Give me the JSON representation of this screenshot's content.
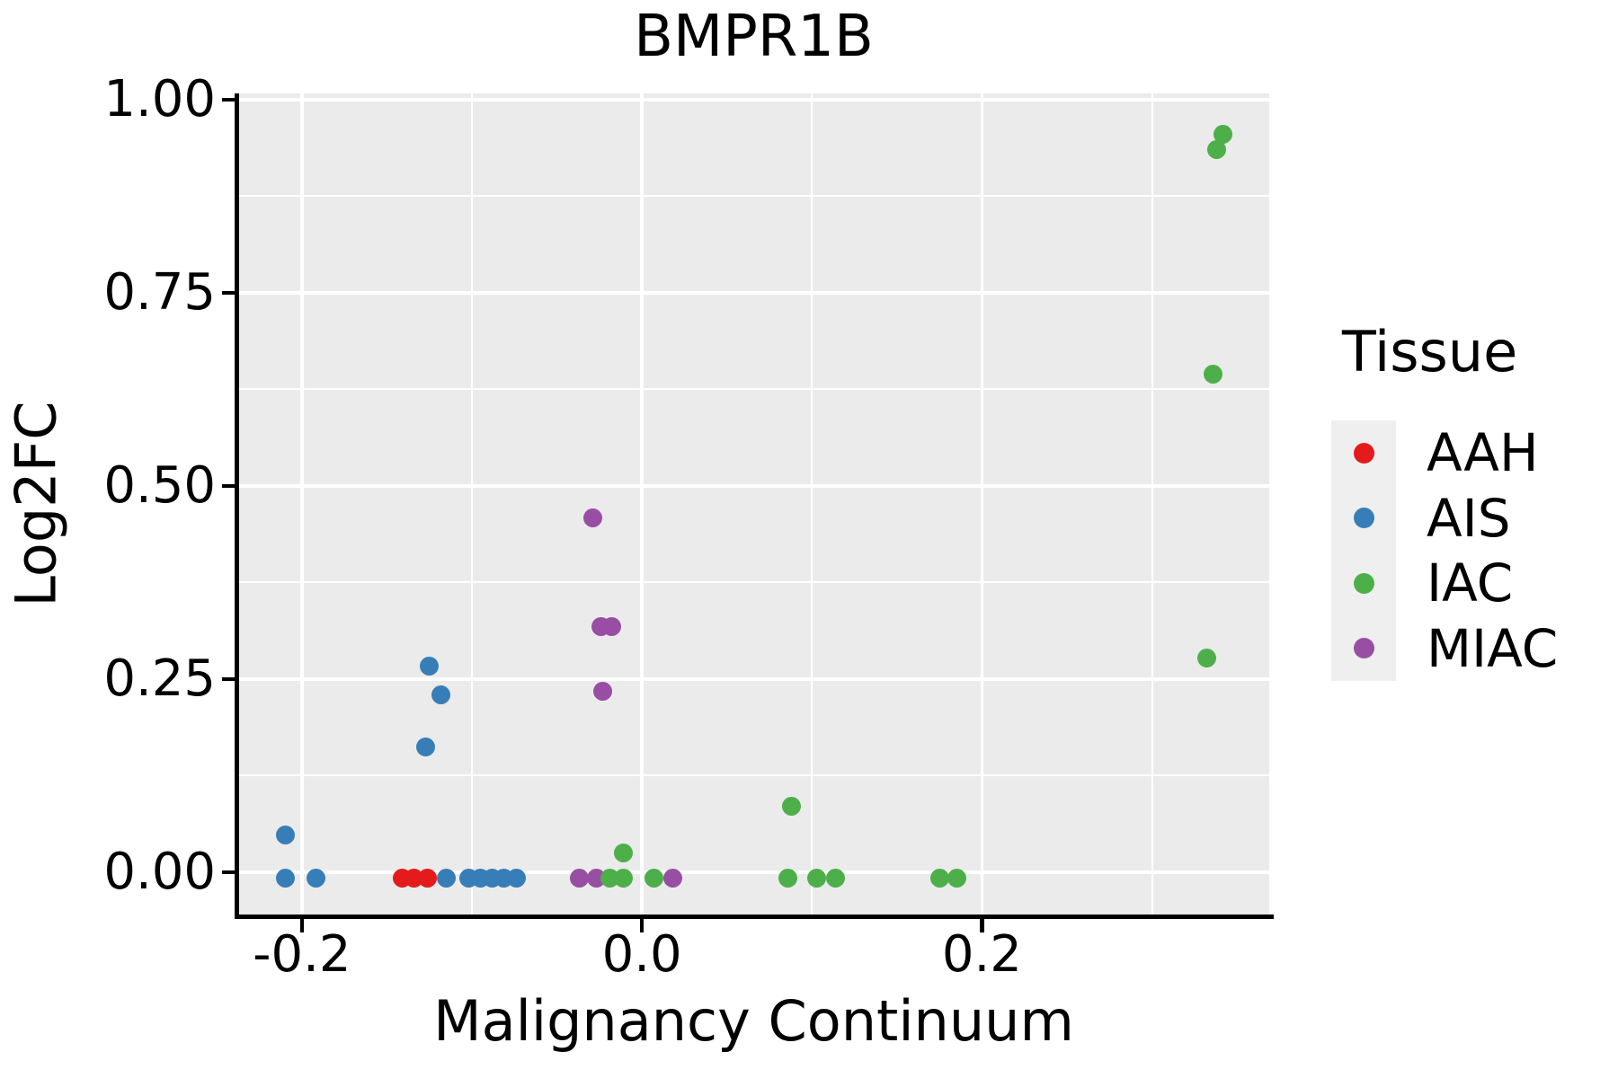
{
  "chart_data": {
    "type": "scatter",
    "title": "BMPR1B",
    "xlabel": "Malignancy Continuum",
    "ylabel": "Log2FC",
    "xlim": [
      -0.2375,
      0.369
    ],
    "ylim": [
      -0.0547,
      1.008
    ],
    "x_ticks": [
      -0.2,
      0.0,
      0.2
    ],
    "x_tick_labels": [
      "-0.2",
      "0.0",
      "0.2"
    ],
    "x_minor_ticks": [
      -0.1,
      0.1,
      0.3
    ],
    "y_ticks": [
      0.0,
      0.25,
      0.5,
      0.75,
      1.0
    ],
    "y_tick_labels": [
      "0.00",
      "0.25",
      "0.50",
      "0.75",
      "1.00"
    ],
    "y_minor_ticks": [
      0.125,
      0.375,
      0.625,
      0.875
    ],
    "grid": true,
    "legend_position": "right",
    "series": [
      {
        "name": "AAH",
        "color": "#E41A1C",
        "points": [
          [
            -0.141,
            -0.008
          ],
          [
            -0.134,
            -0.008
          ],
          [
            -0.126,
            -0.008
          ]
        ]
      },
      {
        "name": "AIS",
        "color": "#377EB8",
        "points": [
          [
            -0.21,
            -0.008
          ],
          [
            -0.21,
            0.048
          ],
          [
            -0.192,
            -0.008
          ],
          [
            -0.127,
            0.162
          ],
          [
            -0.125,
            0.267
          ],
          [
            -0.118,
            0.23
          ],
          [
            -0.115,
            -0.008
          ],
          [
            -0.102,
            -0.008
          ],
          [
            -0.095,
            -0.008
          ],
          [
            -0.088,
            -0.008
          ],
          [
            -0.081,
            -0.008
          ],
          [
            -0.074,
            -0.008
          ]
        ]
      },
      {
        "name": "MIAC",
        "color": "#984EA3",
        "points": [
          [
            -0.037,
            -0.008
          ],
          [
            -0.029,
            0.459
          ],
          [
            -0.027,
            -0.008
          ],
          [
            -0.024,
            0.318
          ],
          [
            -0.023,
            0.234
          ],
          [
            -0.018,
            0.318
          ],
          [
            0.018,
            -0.008
          ]
        ]
      },
      {
        "name": "IAC",
        "color": "#4DAF4A",
        "points": [
          [
            -0.019,
            -0.008
          ],
          [
            -0.011,
            -0.008
          ],
          [
            -0.011,
            0.025
          ],
          [
            0.007,
            -0.008
          ],
          [
            0.086,
            -0.008
          ],
          [
            0.088,
            0.085
          ],
          [
            0.103,
            -0.008
          ],
          [
            0.114,
            -0.008
          ],
          [
            0.175,
            -0.008
          ],
          [
            0.185,
            -0.008
          ],
          [
            0.332,
            0.277
          ],
          [
            0.336,
            0.645
          ],
          [
            0.338,
            0.935
          ],
          [
            0.342,
            0.955
          ]
        ]
      }
    ]
  },
  "legend": {
    "title": "Tissue",
    "items": [
      {
        "label": "AAH",
        "color": "#E41A1C"
      },
      {
        "label": "AIS",
        "color": "#377EB8"
      },
      {
        "label": "IAC",
        "color": "#4DAF4A"
      },
      {
        "label": "MIAC",
        "color": "#984EA3"
      }
    ]
  },
  "style": {
    "panel_background": "#EBEBEB",
    "grid_color": "#FFFFFF",
    "axis_color": "#000000",
    "legend_key_background": "#EFEFEF"
  }
}
